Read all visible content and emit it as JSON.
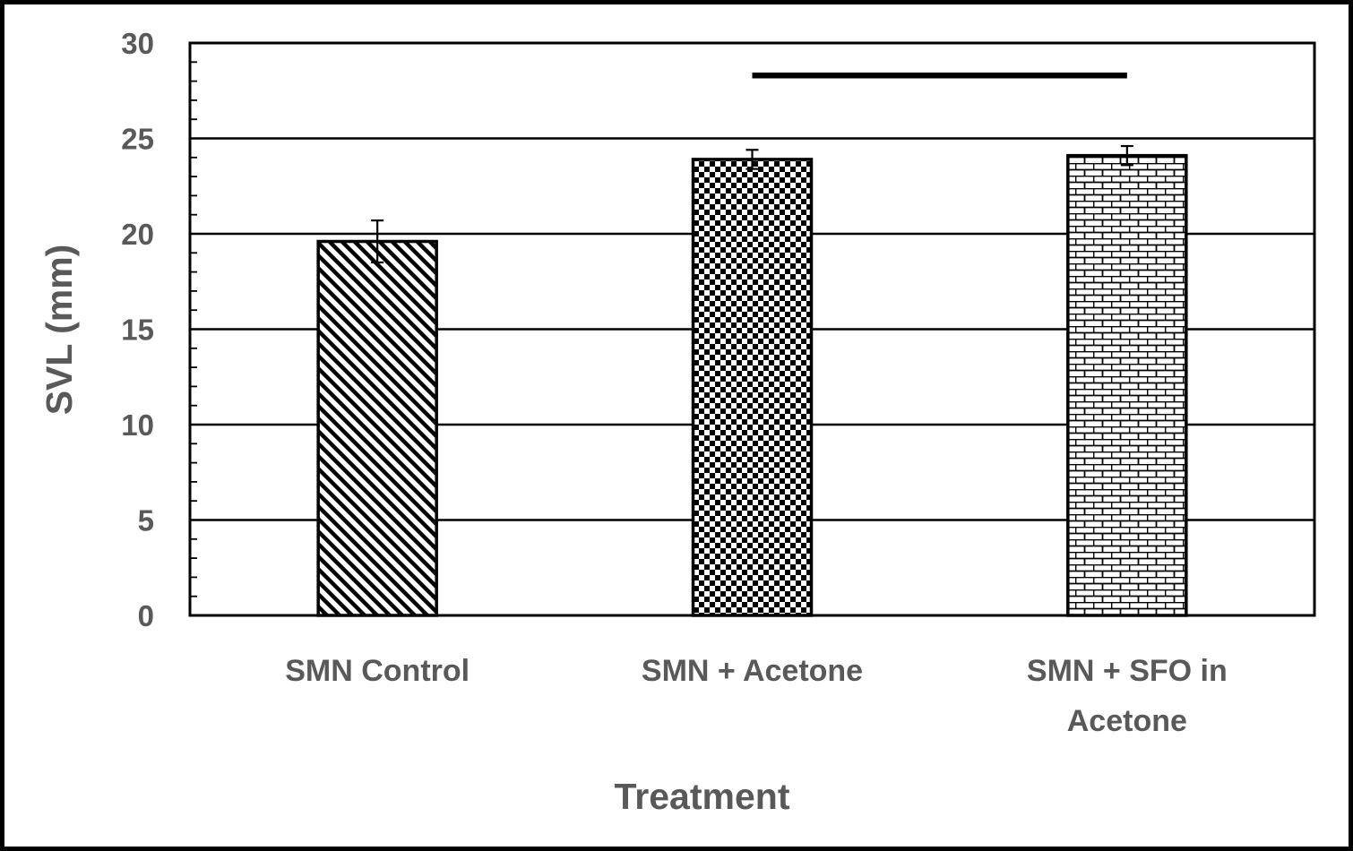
{
  "chart_data": {
    "type": "bar",
    "categories": [
      "SMN Control",
      "SMN + Acetone",
      "SMN + SFO in Acetone"
    ],
    "category_label_lines": [
      [
        "SMN Control"
      ],
      [
        "SMN + Acetone"
      ],
      [
        "SMN + SFO in",
        "Acetone"
      ]
    ],
    "values": [
      19.6,
      23.9,
      24.1
    ],
    "errors": [
      1.1,
      0.5,
      0.5
    ],
    "patterns": [
      "diagonal-stripes",
      "checkerboard",
      "bricks"
    ],
    "title": "",
    "xlabel": "Treatment",
    "ylabel": "SVL (mm)",
    "ylim": [
      0,
      30
    ],
    "yticks": [
      0,
      5,
      10,
      15,
      20,
      25,
      30
    ],
    "grid": true,
    "significance_bar": {
      "from": "SMN + Acetone",
      "to": "SMN + SFO in Acetone",
      "y": 28.3
    },
    "colors": {
      "text": "#595959",
      "bars": "#000000",
      "background": "#ffffff"
    }
  }
}
